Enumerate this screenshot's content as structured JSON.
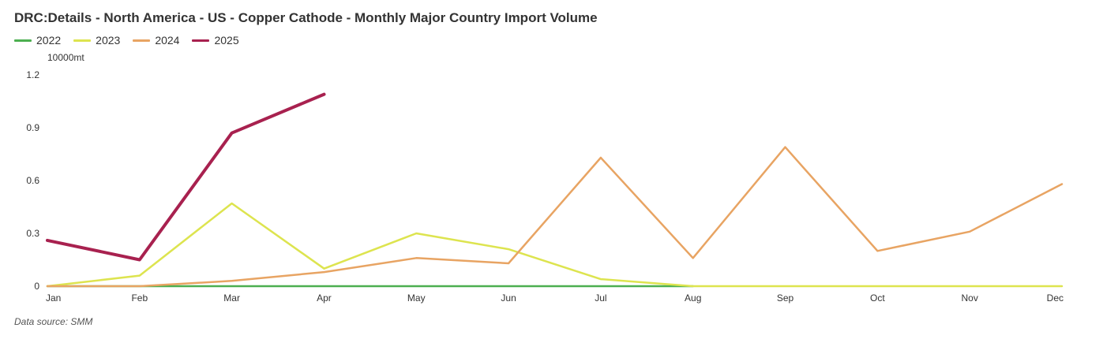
{
  "title": "DRC:Details - North America - US - Copper Cathode - Monthly Major Country Import Volume",
  "unit": "10000mt",
  "source": "Data source:  SMM",
  "chart_data": {
    "type": "line",
    "title": "DRC:Details - North America - US - Copper Cathode - Monthly Major Country Import Volume",
    "ylabel": "10000mt",
    "xlabel": "",
    "ylim": [
      0,
      1.2
    ],
    "yticks": [
      "0",
      "0.3",
      "0.6",
      "0.9",
      "1.2"
    ],
    "categories": [
      "Jan",
      "Feb",
      "Mar",
      "Apr",
      "May",
      "Jun",
      "Jul",
      "Aug",
      "Sep",
      "Oct",
      "Nov",
      "Dec"
    ],
    "legend_position": "top-left",
    "grid": false,
    "series": [
      {
        "name": "2022",
        "color": "#4caf50",
        "width": 2.5,
        "values": [
          0,
          0,
          0,
          0,
          0,
          0,
          0,
          0,
          null,
          null,
          null,
          null
        ]
      },
      {
        "name": "2023",
        "color": "#dde44f",
        "width": 2.5,
        "values": [
          0,
          0.06,
          0.47,
          0.1,
          0.3,
          0.21,
          0.04,
          0,
          0,
          0,
          0,
          0
        ]
      },
      {
        "name": "2024",
        "color": "#e8a463",
        "width": 2.5,
        "values": [
          0,
          0,
          0.03,
          0.08,
          0.16,
          0.13,
          0.73,
          0.16,
          0.79,
          0.2,
          0.31,
          0.58
        ]
      },
      {
        "name": "2025",
        "color": "#a8214f",
        "width": 4,
        "values": [
          0.26,
          0.15,
          0.87,
          1.09,
          null,
          null,
          null,
          null,
          null,
          null,
          null,
          null
        ]
      }
    ]
  }
}
